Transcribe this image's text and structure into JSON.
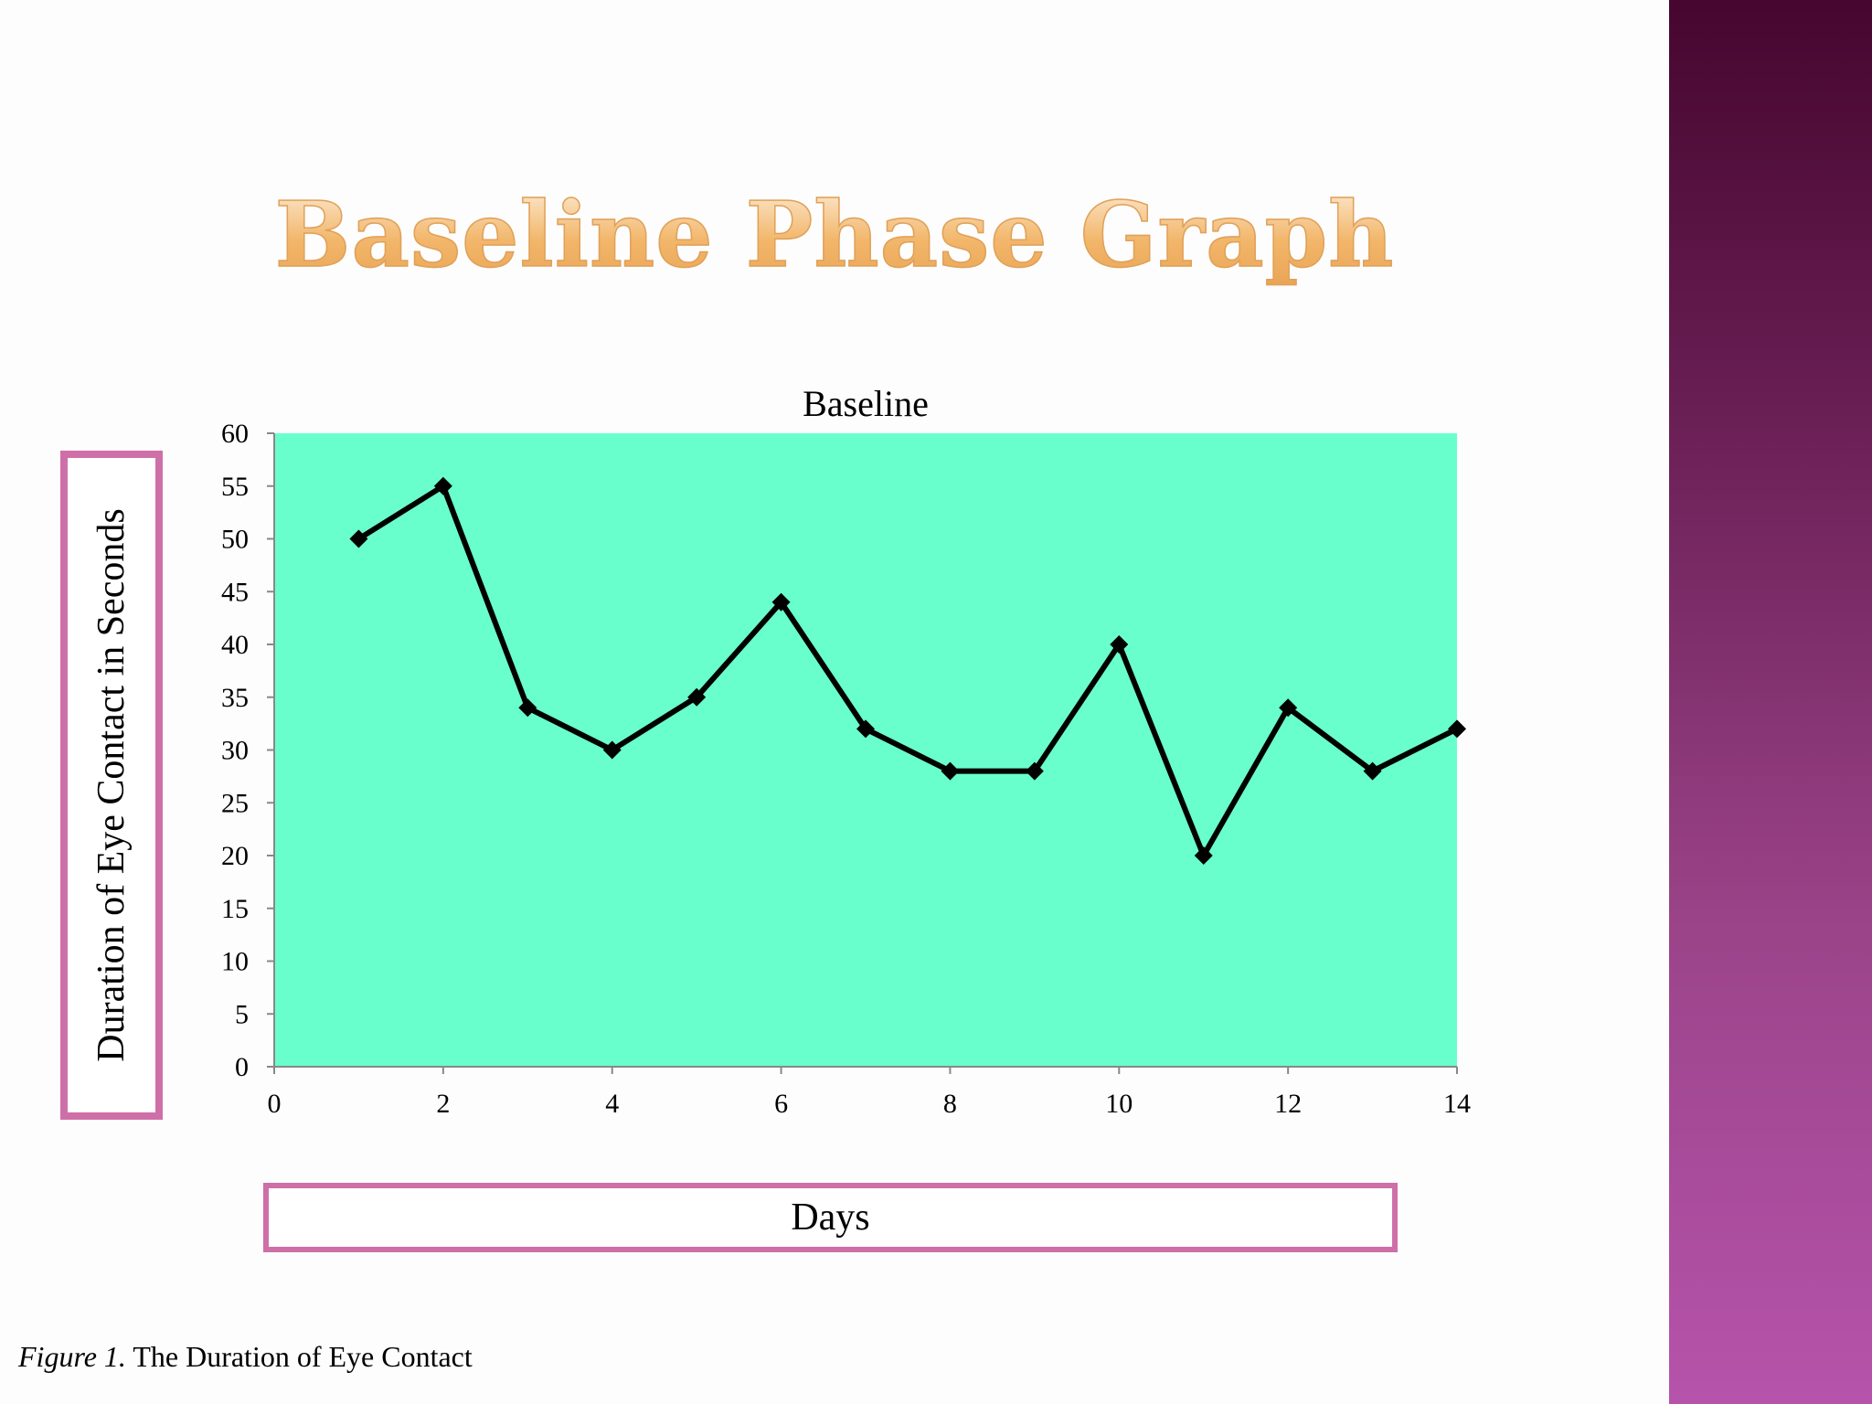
{
  "slide": {
    "title": "Baseline Phase Graph",
    "caption_label": "Figure 1.",
    "caption_text": " The Duration of Eye Contact"
  },
  "colors": {
    "plot_background": "#69ffcc",
    "line": "#000000",
    "label_box_border": "#cf6fa8",
    "sidebar_top": "#46062f",
    "sidebar_bottom": "#b653ab",
    "title_gradient": [
      "#fbe3c4",
      "#e9a455"
    ]
  },
  "chart_data": {
    "type": "scatter",
    "title": "Baseline",
    "xlabel": "Days",
    "ylabel": "Duration of Eye Contact in Seconds",
    "xlim": [
      0,
      14
    ],
    "ylim": [
      0,
      60
    ],
    "xticks": [
      0,
      2,
      4,
      6,
      8,
      10,
      12,
      14
    ],
    "yticks": [
      0,
      5,
      10,
      15,
      20,
      25,
      30,
      35,
      40,
      45,
      50,
      55,
      60
    ],
    "grid": false,
    "legend": "none",
    "marker": "diamond",
    "connected": true,
    "series": [
      {
        "x": [
          1,
          2,
          3,
          4,
          5,
          6,
          7,
          8,
          9,
          10,
          11,
          12,
          13,
          14
        ],
        "y": [
          50,
          55,
          34,
          30,
          35,
          44,
          32,
          28,
          28,
          40,
          20,
          34,
          28,
          32
        ]
      }
    ]
  }
}
